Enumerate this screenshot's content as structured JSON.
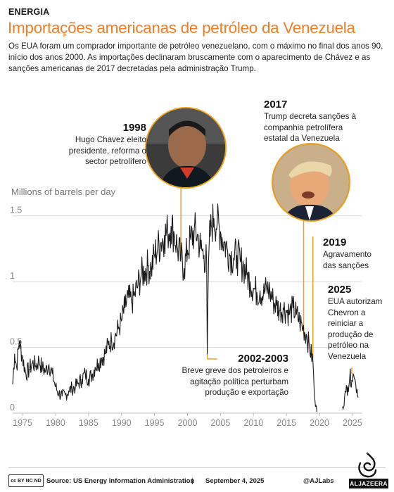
{
  "header": {
    "kicker": "ENERGIA",
    "title": "Importações americanas de petróleo da Venezuela",
    "subtitle": "Os EUA foram um comprador importante de petróleo venezuelano, com o máximo no final dos anos 90, início dos anos 2000. As importações declinaram bruscamente com o aparecimento de Chávez e as sanções americanas de 2017 decretadas pela administração Trump."
  },
  "colors": {
    "accent": "#f07e26",
    "line": "#1a1a1a",
    "annotation_line": "#f0a020",
    "grid": "#d9d9d9"
  },
  "annotations": {
    "a1998": {
      "year": "1998",
      "text": "Hugo Chavez eleito presidente, reforma o sector petrolífero"
    },
    "a2017": {
      "year": "2017",
      "text": "Trump decreta sanções à companhia petrolífera estatal da Venezuela"
    },
    "a2019": {
      "year": "2019",
      "text": "Agravamento das sanções"
    },
    "a2025": {
      "year": "2025",
      "text": "EUA autorizam Chevron a reiniciar a produção de petróleo na Venezuela"
    },
    "a0203": {
      "year": "2002-2003",
      "text": "Breve greve dos petroleiros e agitação política perturbam produção e exportação"
    }
  },
  "photos": {
    "chavez": {
      "icon": "portrait-hugo-chavez"
    },
    "trump": {
      "icon": "portrait-donald-trump"
    }
  },
  "chart_data": {
    "type": "line",
    "title": "",
    "xlabel": "",
    "ylabel": "Millions of barrels per day",
    "xlim": [
      1973.5,
      2026.5
    ],
    "ylim": [
      0,
      1.6
    ],
    "yticks": [
      0,
      0.5,
      1,
      1.5
    ],
    "ytick_labels": [
      "0",
      "0.5",
      "1",
      "1.5"
    ],
    "xticks": [
      1975,
      1980,
      1985,
      1990,
      1995,
      2000,
      2005,
      2010,
      2015,
      2020,
      2025
    ],
    "grid": true,
    "series": [
      {
        "x": [
          1973.5,
          1973.8,
          1974.1,
          1974.5,
          1975.0,
          1975.5,
          1976.0,
          1976.5,
          1977.0,
          1977.5,
          1978.0,
          1978.5,
          1979.0,
          1979.5,
          1980.0,
          1980.5,
          1981.0,
          1981.5,
          1982.0,
          1982.5,
          1983.0,
          1983.5,
          1984.0,
          1984.5,
          1985.0,
          1985.5,
          1986.0,
          1986.5,
          1987.0,
          1987.5,
          1988.0,
          1988.5,
          1989.0,
          1989.5,
          1990.0,
          1990.5,
          1991.0,
          1991.5,
          1992.0,
          1992.5,
          1993.0,
          1993.5,
          1994.0,
          1994.5,
          1995.0,
          1995.5,
          1996.0,
          1996.5,
          1997.0,
          1997.5,
          1998.0,
          1998.5,
          1999.0,
          1999.5,
          2000.0,
          2000.5,
          2001.0,
          2001.5,
          2002.0,
          2002.5,
          2002.9,
          2003.0,
          2003.1,
          2003.3,
          2003.6,
          2004.0,
          2004.5,
          2005.0,
          2005.5,
          2006.0,
          2006.5,
          2007.0,
          2007.5,
          2008.0,
          2008.5,
          2009.0,
          2009.5,
          2010.0,
          2010.5,
          2011.0,
          2011.5,
          2012.0,
          2012.5,
          2013.0,
          2013.5,
          2014.0,
          2014.5,
          2015.0,
          2015.5,
          2016.0,
          2016.5,
          2017.0,
          2017.5,
          2018.0,
          2018.5,
          2019.0,
          2019.2,
          2019.4,
          2019.6,
          2023.5,
          2023.8,
          2024.0,
          2024.3,
          2024.6,
          2024.9,
          2025.1,
          2025.3,
          2025.5,
          2025.7,
          2025.9
        ],
        "y": [
          0.22,
          0.45,
          0.35,
          0.55,
          0.42,
          0.3,
          0.33,
          0.38,
          0.36,
          0.4,
          0.34,
          0.32,
          0.37,
          0.3,
          0.2,
          0.15,
          0.13,
          0.14,
          0.17,
          0.19,
          0.2,
          0.23,
          0.26,
          0.3,
          0.26,
          0.29,
          0.35,
          0.38,
          0.42,
          0.45,
          0.52,
          0.55,
          0.58,
          0.64,
          0.7,
          0.8,
          0.88,
          0.84,
          0.9,
          0.98,
          1.05,
          1.08,
          1.12,
          1.1,
          1.2,
          1.26,
          1.3,
          1.35,
          1.38,
          1.42,
          1.36,
          1.25,
          1.18,
          1.1,
          1.24,
          1.32,
          1.38,
          1.36,
          1.25,
          1.2,
          1.15,
          0.45,
          0.9,
          1.3,
          1.42,
          1.48,
          1.44,
          1.38,
          1.3,
          1.25,
          1.2,
          1.18,
          1.2,
          1.15,
          1.12,
          1.05,
          1.0,
          0.95,
          0.92,
          0.93,
          0.9,
          0.95,
          0.92,
          0.85,
          0.82,
          0.78,
          0.8,
          0.78,
          0.76,
          0.8,
          0.75,
          0.7,
          0.65,
          0.6,
          0.5,
          0.4,
          0.18,
          0.05,
          0.01,
          0.05,
          0.12,
          0.16,
          0.2,
          0.28,
          0.25,
          0.3,
          0.26,
          0.22,
          0.18,
          0.12
        ]
      }
    ]
  },
  "footer": {
    "license": "cc BY NC ND",
    "source": "Source: US Energy Information Administration",
    "separator": "|",
    "date": "September 4, 2025",
    "handle": "@AJLabs",
    "brand": "ALJAZEERA"
  }
}
